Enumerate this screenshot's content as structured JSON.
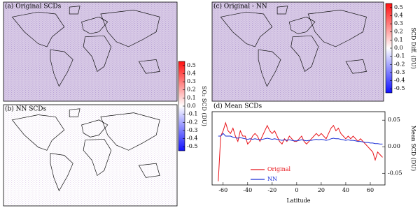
{
  "chart_data": [
    {
      "type": "map",
      "title": "(a) Original SCDs",
      "background": "#d9cbe6",
      "speckle": "#b9a3d6"
    },
    {
      "type": "map",
      "title": "(b) NN SCDs",
      "background": "#ffffff",
      "speckle": "#e8dcef"
    },
    {
      "type": "map",
      "title": "(c) Original - NN",
      "background": "#d9cbe6",
      "speckle": "#b9a3d6"
    },
    {
      "type": "line",
      "title": "(d) Mean SCDs",
      "x_label": "Latitude",
      "y_label": "Mean SCD (DU)",
      "xlim": [
        -69,
        72
      ],
      "xticks": [
        -60,
        -40,
        -20,
        0,
        20,
        40,
        60
      ],
      "ylim": [
        -0.072,
        0.066
      ],
      "yticks": [
        0.05,
        {
          "value": 0,
          "label": "0.00"
        },
        -0.05
      ],
      "x": [
        -64,
        -62,
        -60,
        -58,
        -56,
        -54,
        -52,
        -50,
        -48,
        -46,
        -44,
        -42,
        -40,
        -38,
        -36,
        -34,
        -32,
        -30,
        -28,
        -26,
        -24,
        -22,
        -20,
        -18,
        -16,
        -14,
        -12,
        -10,
        -8,
        -6,
        -4,
        -2,
        0,
        2,
        4,
        6,
        8,
        10,
        12,
        14,
        16,
        18,
        20,
        22,
        24,
        26,
        28,
        30,
        32,
        34,
        36,
        38,
        40,
        42,
        44,
        46,
        48,
        50,
        52,
        54,
        56,
        58,
        60,
        62,
        64,
        66,
        68,
        70
      ],
      "series": [
        {
          "name": "Original",
          "color": "#e8141a",
          "values": [
            -0.065,
            0.02,
            0.03,
            0.045,
            0.03,
            0.025,
            0.035,
            0.02,
            0.01,
            0.03,
            0.02,
            0.02,
            0.005,
            0.01,
            0.02,
            0.025,
            0.02,
            0.01,
            0.02,
            0.03,
            0.04,
            0.03,
            0.025,
            0.03,
            0.02,
            0.01,
            0.005,
            0.015,
            0.01,
            0.02,
            0.015,
            0.01,
            0.01,
            0.015,
            0.02,
            0.01,
            0.005,
            0.01,
            0.015,
            0.02,
            0.025,
            0.02,
            0.025,
            0.02,
            0.015,
            0.025,
            0.035,
            0.04,
            0.03,
            0.035,
            0.025,
            0.02,
            0.015,
            0.02,
            0.015,
            0.02,
            0.015,
            0.01,
            0.015,
            0.01,
            0.005,
            0.0,
            -0.005,
            -0.01,
            -0.025,
            -0.01,
            -0.015,
            -0.02
          ]
        },
        {
          "name": "NN",
          "color": "#1a2ed6",
          "values": [
            0.02,
            0.02,
            0.025,
            0.02,
            0.02,
            0.02,
            0.018,
            0.017,
            0.016,
            0.017,
            0.016,
            0.015,
            0.014,
            0.015,
            0.014,
            0.015,
            0.014,
            0.013,
            0.014,
            0.015,
            0.016,
            0.015,
            0.014,
            0.015,
            0.014,
            0.013,
            0.012,
            0.013,
            0.012,
            0.013,
            0.012,
            0.011,
            0.011,
            0.012,
            0.013,
            0.012,
            0.011,
            0.012,
            0.012,
            0.013,
            0.014,
            0.013,
            0.014,
            0.013,
            0.012,
            0.013,
            0.015,
            0.016,
            0.015,
            0.015,
            0.014,
            0.013,
            0.012,
            0.013,
            0.012,
            0.012,
            0.011,
            0.01,
            0.01,
            0.009,
            0.008,
            0.008,
            0.007,
            0.007,
            0.006,
            0.006,
            0.005,
            0.005
          ]
        }
      ]
    },
    {
      "type": "colorbar",
      "label": "SO₂ SCD (DU)",
      "lim": [
        -0.55,
        0.55
      ],
      "colors": [
        "#1010ff",
        "#ffffff",
        "#ff1010"
      ],
      "ticks": [
        0.5,
        0.4,
        0.3,
        0.2,
        0.1,
        {
          "value": 0,
          "label": "0.0"
        },
        -0.1,
        -0.2,
        -0.3,
        -0.4,
        -0.5
      ]
    },
    {
      "type": "colorbar",
      "label": "SCD Diff. (DU)",
      "lim": [
        -0.55,
        0.55
      ],
      "colors": [
        "#1010ff",
        "#ffffff",
        "#ff1010"
      ],
      "ticks": [
        0.5,
        0.4,
        0.3,
        0.2,
        0.1,
        {
          "value": 0,
          "label": "0.0"
        },
        -0.1,
        -0.2,
        -0.3,
        -0.4,
        -0.5
      ]
    }
  ]
}
